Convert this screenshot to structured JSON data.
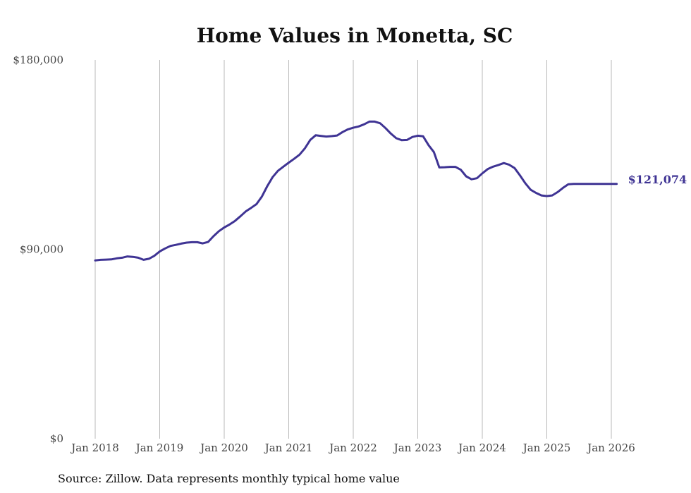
{
  "chart_data": {
    "type": "line",
    "title": "Home Values in Monetta, SC",
    "xlabel": "",
    "ylabel": "",
    "ylim": [
      0,
      180000
    ],
    "yticks": [
      {
        "value": 0,
        "label": "$0"
      },
      {
        "value": 90000,
        "label": "$90,000"
      },
      {
        "value": 180000,
        "label": "$180,000"
      }
    ],
    "xticks": [
      {
        "value": 2018,
        "label": "Jan 2018"
      },
      {
        "value": 2019,
        "label": "Jan 2019"
      },
      {
        "value": 2020,
        "label": "Jan 2020"
      },
      {
        "value": 2021,
        "label": "Jan 2021"
      },
      {
        "value": 2022,
        "label": "Jan 2022"
      },
      {
        "value": 2023,
        "label": "Jan 2023"
      },
      {
        "value": 2024,
        "label": "Jan 2024"
      },
      {
        "value": 2025,
        "label": "Jan 2025"
      },
      {
        "value": 2026,
        "label": "Jan 2026"
      }
    ],
    "xlim": [
      2018,
      2026
    ],
    "grid": "vertical",
    "series": [
      {
        "name": "Typical home value",
        "color": "#3f3494",
        "end_label": "$121,074",
        "x": [
          2018.0,
          2018.083,
          2018.167,
          2018.25,
          2018.333,
          2018.417,
          2018.5,
          2018.583,
          2018.667,
          2018.75,
          2018.833,
          2018.917,
          2019.0,
          2019.083,
          2019.167,
          2019.25,
          2019.333,
          2019.417,
          2019.5,
          2019.583,
          2019.667,
          2019.75,
          2019.833,
          2019.917,
          2020.0,
          2020.083,
          2020.167,
          2020.25,
          2020.333,
          2020.417,
          2020.5,
          2020.583,
          2020.667,
          2020.75,
          2020.833,
          2020.917,
          2021.0,
          2021.083,
          2021.167,
          2021.25,
          2021.333,
          2021.417,
          2021.5,
          2021.583,
          2021.667,
          2021.75,
          2021.833,
          2021.917,
          2022.0,
          2022.083,
          2022.167,
          2022.25,
          2022.333,
          2022.417,
          2022.5,
          2022.583,
          2022.667,
          2022.75,
          2022.833,
          2022.917,
          2023.0,
          2023.083,
          2023.167,
          2023.25,
          2023.333,
          2023.417,
          2023.5,
          2023.583,
          2023.667,
          2023.75,
          2023.833,
          2023.917,
          2024.0,
          2024.083,
          2024.167,
          2024.25,
          2024.333,
          2024.417,
          2024.5,
          2024.583,
          2024.667,
          2024.75,
          2024.833,
          2024.917,
          2025.0,
          2025.083,
          2025.167,
          2025.25,
          2025.333,
          2025.417,
          2025.5,
          2025.583,
          2025.667,
          2025.75,
          2025.833,
          2025.917,
          2026.0,
          2026.083
        ],
        "values": [
          84700,
          85000,
          85100,
          85200,
          85700,
          86000,
          86600,
          86400,
          86000,
          85000,
          85500,
          86900,
          89000,
          90400,
          91600,
          92100,
          92700,
          93200,
          93400,
          93400,
          92800,
          93500,
          96200,
          98600,
          100400,
          101800,
          103500,
          105700,
          108000,
          109700,
          111500,
          115000,
          120000,
          124300,
          127300,
          129300,
          131200,
          133000,
          135000,
          138000,
          142000,
          144200,
          143900,
          143600,
          143800,
          144100,
          145700,
          147000,
          147800,
          148400,
          149400,
          150700,
          150700,
          149900,
          147600,
          145000,
          142800,
          141900,
          142000,
          143400,
          144000,
          143700,
          139500,
          136200,
          128900,
          129000,
          129200,
          129200,
          127800,
          124700,
          123300,
          123800,
          126100,
          128100,
          129300,
          130100,
          131000,
          130200,
          128600,
          125200,
          121400,
          118300,
          116800,
          115600,
          115300,
          115600,
          117200,
          119200,
          120900,
          121074,
          121074,
          121074,
          121074,
          121074,
          121074,
          121074,
          121074,
          121074
        ]
      }
    ]
  },
  "source_note": "Source: Zillow. Data represents monthly typical home value"
}
